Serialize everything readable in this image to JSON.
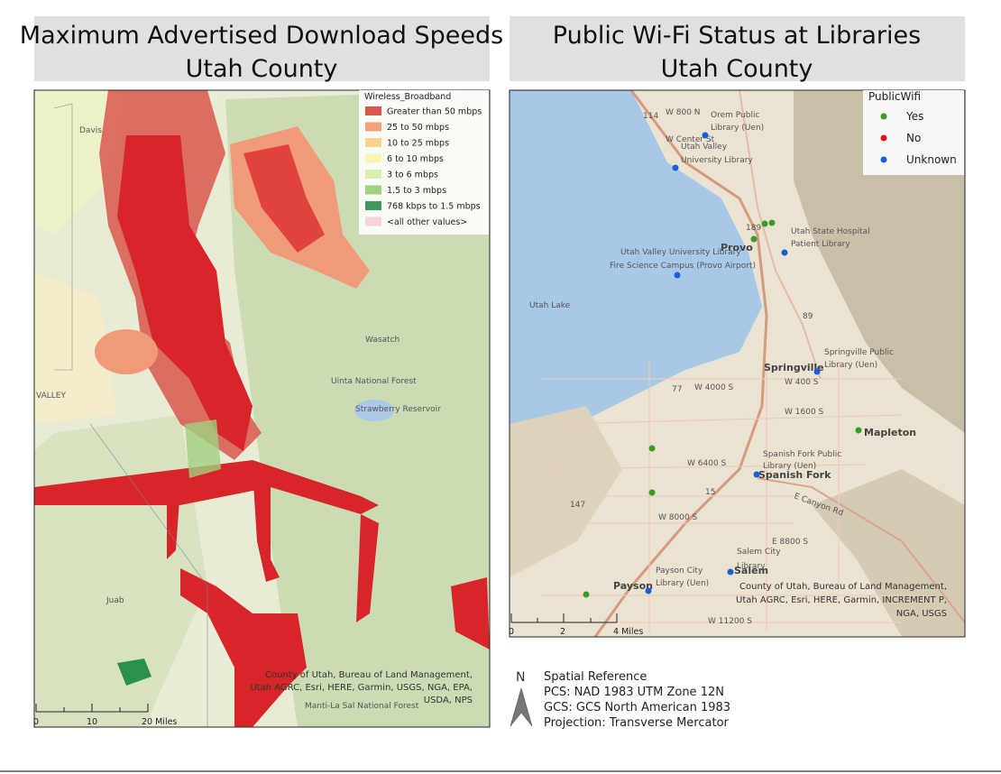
{
  "left_map": {
    "title": [
      "Maximum Advertised Download Speeds",
      "Utah County"
    ],
    "legend": {
      "title": "Wireless_Broadband",
      "items": [
        {
          "label": "Greater than 50 mbps",
          "color": "#d9574f"
        },
        {
          "label": "25 to 50 mbps",
          "color": "#f5a27a"
        },
        {
          "label": "10 to 25 mbps",
          "color": "#fbd58f"
        },
        {
          "label": "6 to 10 mbps",
          "color": "#fbf5b0"
        },
        {
          "label": "3 to 6 mbps",
          "color": "#dcedb0"
        },
        {
          "label": "1.5 to 3 mbps",
          "color": "#9fd17e"
        },
        {
          "label": "768 kbps to 1.5 mbps",
          "color": "#3d9a5a"
        },
        {
          "label": "<all other values>",
          "color": "#f5d3d6"
        }
      ]
    },
    "place_labels": [
      "Davis",
      "Wasatch",
      "Uinta National Forest",
      "Strawberry Reservoir",
      "Juab",
      "Manti-La Sal National Forest",
      "VALLEY"
    ],
    "attribution": [
      "County of Utah, Bureau of Land Management,",
      "Utah AGRC, Esri, HERE, Garmin, USGS, NGA, EPA,",
      "USDA, NPS"
    ],
    "scale_bar": [
      "0",
      "10",
      "20 Miles"
    ]
  },
  "right_map": {
    "title": [
      "Public Wi-Fi Status at Libraries",
      "Utah County"
    ],
    "legend": {
      "title": "PublicWifi",
      "items": [
        {
          "label": "Yes",
          "color": "#3a9d23"
        },
        {
          "label": "No",
          "color": "#e8141b"
        },
        {
          "label": "Unknown",
          "color": "#1a5fd6"
        }
      ]
    },
    "libraries": [
      [
        "Orem Public",
        "Library (Uen)"
      ],
      [
        "Utah Valley",
        "University Library"
      ],
      [
        "Utah State Hospital",
        "Patient Library"
      ],
      [
        "Utah Valley University Library",
        "Fire Science Campus (Provo Airport)"
      ],
      [
        "Springville Public",
        "Library (Uen)"
      ],
      [
        "Spanish Fork Public",
        "Library (Uen)"
      ],
      [
        "Salem City",
        "Library"
      ],
      [
        "Payson City",
        "Library (Uen)"
      ]
    ],
    "place_labels": [
      "Provo",
      "Springville",
      "Mapleton",
      "Spanish Fork",
      "Salem",
      "Payson",
      "Utah Lake",
      "W 800 N",
      "W Center St",
      "W 4000 S",
      "W 400 S",
      "W 1600 S",
      "W 6400 S",
      "W 8000 S",
      "E 8800 S",
      "W 11200 S",
      "E Canyon Rd",
      "189",
      "89",
      "114",
      "77",
      "147",
      "15"
    ],
    "attribution": [
      "County of Utah, Bureau of Land Management,",
      "Utah AGRC, Esri, HERE, Garmin, INCREMENT P,",
      "NGA, USGS"
    ],
    "scale_bar": [
      "0",
      "2",
      "4 Miles"
    ]
  },
  "spatial_reference": {
    "north": "N",
    "lines": [
      "Spatial Reference",
      "PCS: NAD 1983 UTM Zone 12N",
      "GCS: GCS North American 1983",
      "Projection: Transverse Mercator"
    ]
  }
}
